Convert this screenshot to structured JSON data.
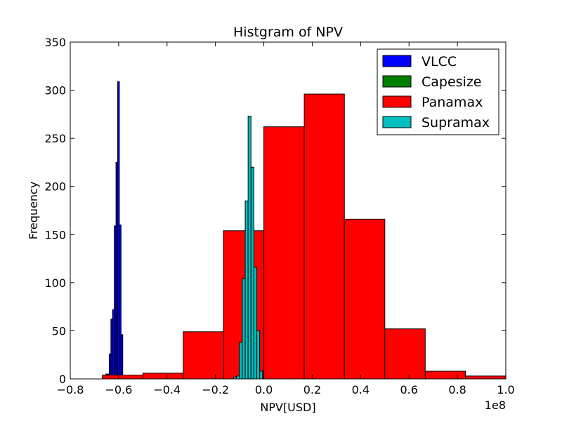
{
  "chart_data": {
    "type": "bar",
    "subtype": "histogram",
    "title": "Histgram of NPV",
    "xlabel": "NPV[USD]",
    "ylabel": "Frequency",
    "x_offset_label": "1e8",
    "xlim": [
      -0.8,
      1.0
    ],
    "ylim": [
      0,
      350
    ],
    "x_ticks": [
      -0.8,
      -0.6,
      -0.4,
      -0.2,
      0.0,
      0.2,
      0.4,
      0.6,
      0.8,
      1.0
    ],
    "x_tick_labels": [
      "−0.8",
      "−0.6",
      "−0.4",
      "−0.2",
      "0.0",
      "0.2",
      "0.4",
      "0.6",
      "0.8",
      "1.0"
    ],
    "y_ticks": [
      0,
      50,
      100,
      150,
      200,
      250,
      300,
      350
    ],
    "y_tick_labels": [
      "0",
      "50",
      "100",
      "150",
      "200",
      "250",
      "300",
      "350"
    ],
    "grid": false,
    "legend_position": "top-right",
    "series": [
      {
        "name": "VLCC",
        "color": "#0000ff",
        "bin_edges": [
          -0.667,
          -0.66,
          -0.653,
          -0.646,
          -0.639,
          -0.632,
          -0.625,
          -0.618,
          -0.611,
          -0.604,
          -0.597,
          -0.59,
          -0.583,
          -0.576,
          -0.569,
          -0.562
        ],
        "counts": [
          3,
          4,
          5,
          5,
          26,
          62,
          72,
          159,
          225,
          309,
          160,
          46,
          0,
          0,
          0
        ]
      },
      {
        "name": "Capesize",
        "color": "#008000",
        "bin_edges": [],
        "counts": []
      },
      {
        "name": "Panamax",
        "color": "#ff0000",
        "bin_edges": [
          -0.667,
          -0.5,
          -0.333,
          -0.167,
          0.0,
          0.167,
          0.333,
          0.5,
          0.667,
          0.833,
          1.0
        ],
        "counts": [
          4,
          6,
          49,
          154,
          262,
          296,
          166,
          52,
          8,
          3
        ]
      },
      {
        "name": "Supramax",
        "color": "#00bfbf",
        "bin_edges": [
          -0.125,
          -0.113,
          -0.101,
          -0.089,
          -0.077,
          -0.065,
          -0.053,
          -0.041,
          -0.029,
          -0.017,
          -0.005
        ],
        "counts": [
          2,
          3,
          38,
          104,
          185,
          273,
          220,
          116,
          50,
          8
        ]
      }
    ]
  }
}
